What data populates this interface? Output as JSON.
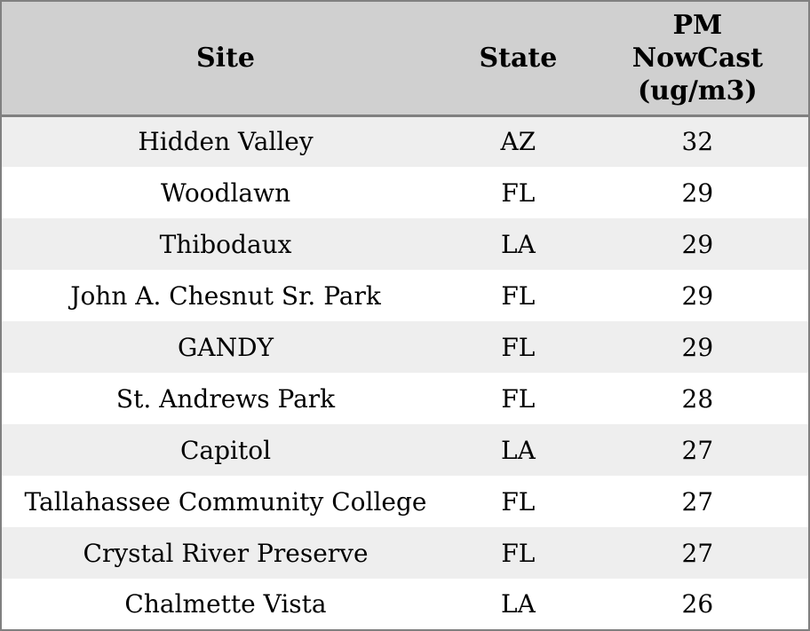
{
  "chart_data": {
    "type": "table",
    "title": "",
    "columns": [
      "Site",
      "State",
      "PM NowCast (ug/m3)"
    ],
    "rows": [
      [
        "Hidden Valley",
        "AZ",
        "32"
      ],
      [
        "Woodlawn",
        "FL",
        "29"
      ],
      [
        "Thibodaux",
        "LA",
        "29"
      ],
      [
        "John A. Chesnut Sr. Park",
        "FL",
        "29"
      ],
      [
        "GANDY",
        "FL",
        "29"
      ],
      [
        "St. Andrews Park",
        "FL",
        "28"
      ],
      [
        "Capitol",
        "LA",
        "27"
      ],
      [
        "Tallahassee Community College",
        "FL",
        "27"
      ],
      [
        "Crystal River Preserve",
        "FL",
        "27"
      ],
      [
        "Chalmette Vista",
        "LA",
        "26"
      ]
    ]
  },
  "header": {
    "columns": [
      {
        "id": "site",
        "lines": [
          "Site"
        ]
      },
      {
        "id": "state",
        "lines": [
          "State"
        ]
      },
      {
        "id": "pm",
        "lines": [
          "PM",
          "NowCast",
          "(ug/m3)"
        ]
      }
    ]
  },
  "colors": {
    "header_bg": "#d0d0d0",
    "stripe_bg": "#eeeeee",
    "row_bg": "#ffffff",
    "border": "#808080",
    "text": "#000000"
  }
}
